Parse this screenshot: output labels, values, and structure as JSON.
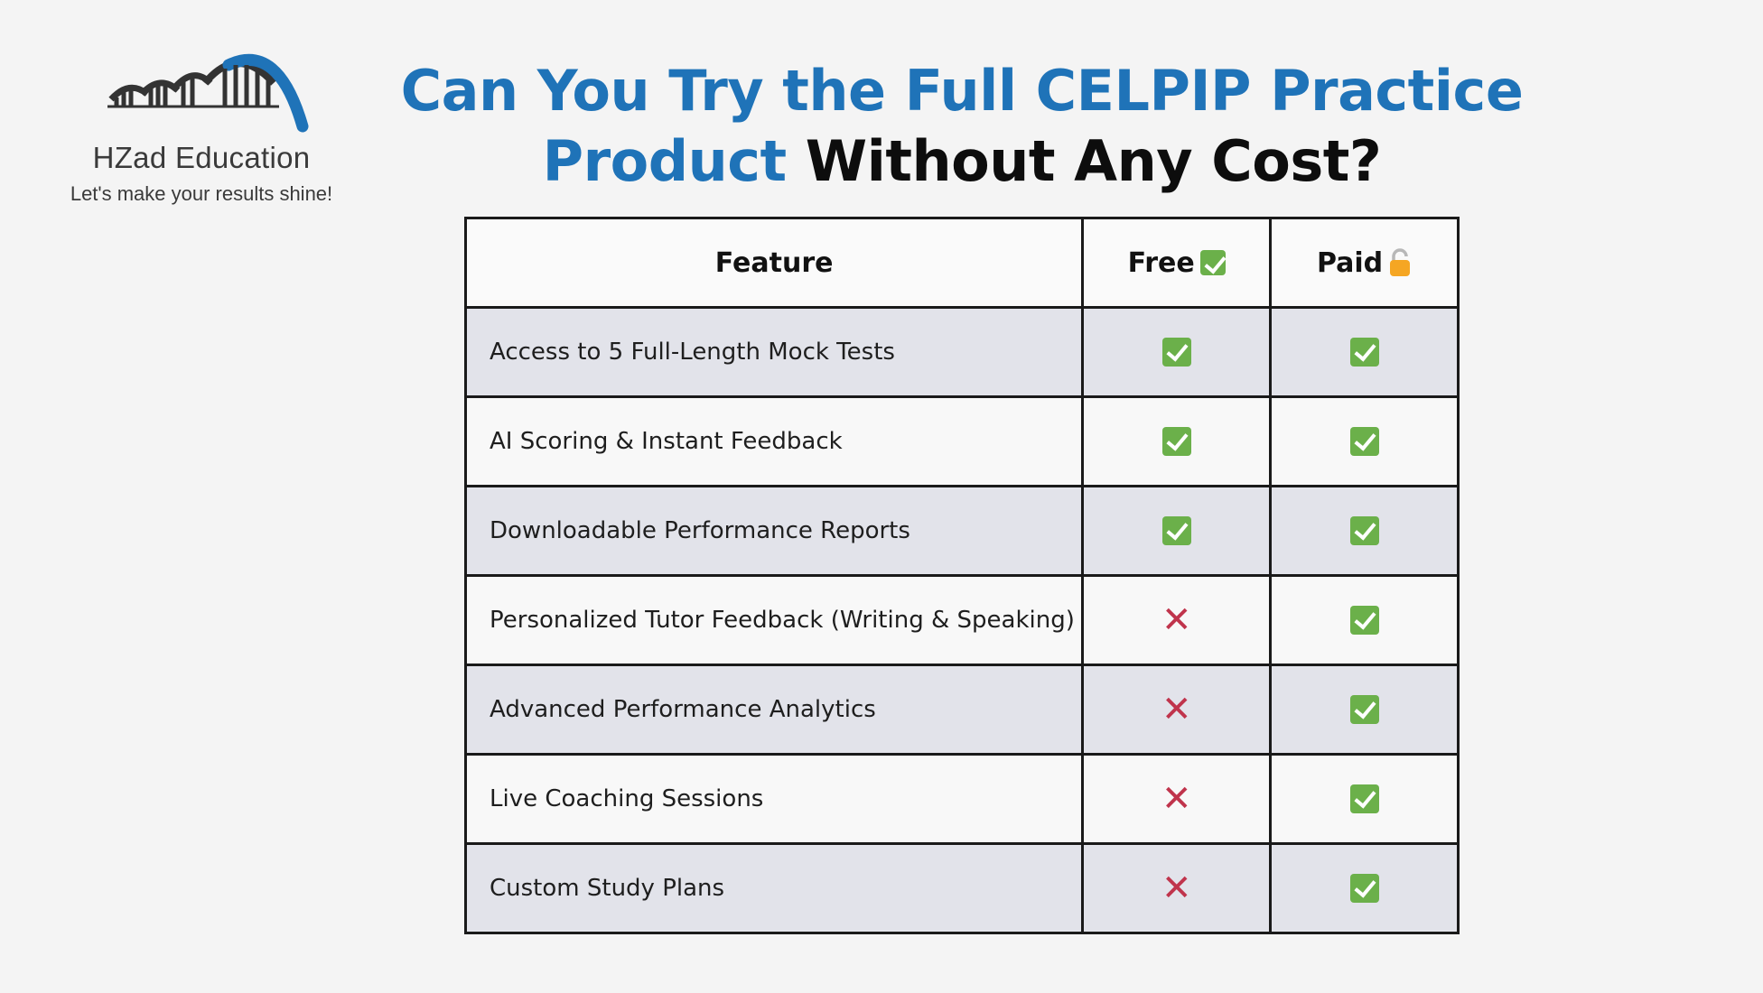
{
  "brand": {
    "name": "HZad Education",
    "tagline": "Let's make your results shine!"
  },
  "headline": {
    "part1": "Can You Try the Full CELPIP Practice",
    "part2": "Product",
    "part3": "Without Any Cost?"
  },
  "colors": {
    "headline_blue": "#1f73b8",
    "check_green": "#6bb04a",
    "cross_red": "#c0344c",
    "row_shade": "#e2e3ea"
  },
  "table": {
    "headers": {
      "feature": "Feature",
      "free": "Free",
      "free_icon": "check-icon",
      "paid": "Paid",
      "paid_icon": "lock-icon"
    },
    "rows": [
      {
        "feature": "Access to 5 Full-Length Mock Tests",
        "free": "check",
        "paid": "check"
      },
      {
        "feature": "AI Scoring & Instant Feedback",
        "free": "check",
        "paid": "check"
      },
      {
        "feature": "Downloadable Performance Reports",
        "free": "check",
        "paid": "check"
      },
      {
        "feature": "Personalized Tutor Feedback (Writing & Speaking)",
        "free": "cross",
        "paid": "check"
      },
      {
        "feature": "Advanced Performance Analytics",
        "free": "cross",
        "paid": "check"
      },
      {
        "feature": "Live Coaching Sessions",
        "free": "cross",
        "paid": "check"
      },
      {
        "feature": "Custom Study Plans",
        "free": "cross",
        "paid": "check"
      }
    ]
  }
}
